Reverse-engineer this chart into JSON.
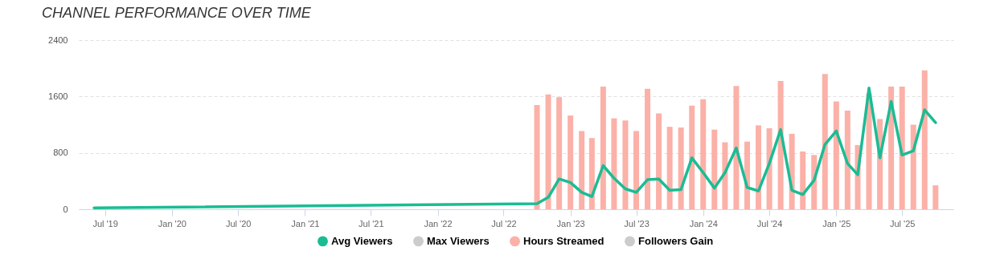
{
  "chart_data": {
    "type": "bar",
    "title": "CHANNEL PERFORMANCE OVER TIME",
    "x": [
      "2022-10",
      "2022-11",
      "2022-12",
      "2023-01",
      "2023-02",
      "2023-03",
      "2023-04",
      "2023-05",
      "2023-06",
      "2023-07",
      "2023-08",
      "2023-09",
      "2023-10",
      "2023-11",
      "2023-12",
      "2024-01",
      "2024-02",
      "2024-03",
      "2024-04",
      "2024-05",
      "2024-06",
      "2024-07",
      "2024-08",
      "2024-09",
      "2024-10",
      "2024-11",
      "2024-12",
      "2025-01",
      "2025-02",
      "2025-03",
      "2025-04",
      "2025-05",
      "2025-06",
      "2025-07",
      "2025-08",
      "2025-09",
      "2025-10"
    ],
    "series": [
      {
        "name": "Avg Viewers",
        "type": "line",
        "color": "#1abc94",
        "x": [
          "2019-06",
          "2022-10",
          "2022-11",
          "2022-12",
          "2023-01",
          "2023-02",
          "2023-03",
          "2023-04",
          "2023-05",
          "2023-06",
          "2023-07",
          "2023-08",
          "2023-09",
          "2023-10",
          "2023-11",
          "2023-12",
          "2024-01",
          "2024-02",
          "2024-03",
          "2024-04",
          "2024-05",
          "2024-06",
          "2024-07",
          "2024-08",
          "2024-09",
          "2024-10",
          "2024-11",
          "2024-12",
          "2025-01",
          "2025-02",
          "2025-03",
          "2025-04",
          "2025-05",
          "2025-06",
          "2025-07",
          "2025-08",
          "2025-09",
          "2025-10"
        ],
        "values": [
          20,
          80,
          170,
          430,
          380,
          240,
          180,
          620,
          440,
          290,
          240,
          420,
          430,
          270,
          280,
          730,
          520,
          300,
          520,
          870,
          310,
          260,
          650,
          1130,
          270,
          210,
          410,
          920,
          1110,
          650,
          490,
          1720,
          730,
          1530,
          770,
          830,
          1410,
          1230
        ]
      },
      {
        "name": "Max Viewers",
        "type": "line",
        "color": "#cccccc",
        "values": [
          null,
          null,
          null,
          null,
          null,
          null,
          null,
          null,
          null,
          null,
          null,
          null,
          null,
          null,
          null,
          null,
          null,
          null,
          null,
          null,
          null,
          null,
          null,
          null,
          null,
          null,
          null,
          null,
          null,
          null,
          null,
          null,
          null,
          null,
          null,
          null,
          null
        ]
      },
      {
        "name": "Hours Streamed",
        "color": "#fbb1a8",
        "values": [
          1480,
          1630,
          1590,
          1330,
          1110,
          1010,
          1740,
          1290,
          1260,
          1110,
          1710,
          1360,
          1170,
          1160,
          1470,
          1560,
          1130,
          950,
          1750,
          960,
          1190,
          1150,
          1820,
          1070,
          820,
          770,
          1920,
          1530,
          1400,
          910,
          1640,
          1280,
          1740,
          1740,
          1200,
          1970,
          340
        ]
      },
      {
        "name": "Followers Gain",
        "color": "#cccccc",
        "values": [
          null,
          null,
          null,
          null,
          null,
          null,
          null,
          null,
          null,
          null,
          null,
          null,
          null,
          null,
          null,
          null,
          null,
          null,
          null,
          null,
          null,
          null,
          null,
          null,
          null,
          null,
          null,
          null,
          null,
          null,
          null,
          null,
          null,
          null,
          null,
          null,
          null
        ]
      }
    ],
    "xlim": [
      "2019-05-01",
      "2025-11-08"
    ],
    "xticks": [
      {
        "value": "2019-07-01",
        "label": "Jul '19"
      },
      {
        "value": "2020-01-01",
        "label": "Jan '20"
      },
      {
        "value": "2020-07-01",
        "label": "Jul '20"
      },
      {
        "value": "2021-01-01",
        "label": "Jan '21"
      },
      {
        "value": "2021-07-01",
        "label": "Jul '21"
      },
      {
        "value": "2022-01-01",
        "label": "Jan '22"
      },
      {
        "value": "2022-07-01",
        "label": "Jul '22"
      },
      {
        "value": "2023-01-01",
        "label": "Jan '23"
      },
      {
        "value": "2023-07-01",
        "label": "Jul '23"
      },
      {
        "value": "2024-01-01",
        "label": "Jan '24"
      },
      {
        "value": "2024-07-01",
        "label": "Jul '24"
      },
      {
        "value": "2025-01-01",
        "label": "Jan '25"
      },
      {
        "value": "2025-07-01",
        "label": "Jul '25"
      }
    ],
    "ylim": [
      0,
      2400
    ],
    "yticks": [
      0,
      800,
      1600,
      2400
    ],
    "grid": "y",
    "legend": "bottom"
  }
}
